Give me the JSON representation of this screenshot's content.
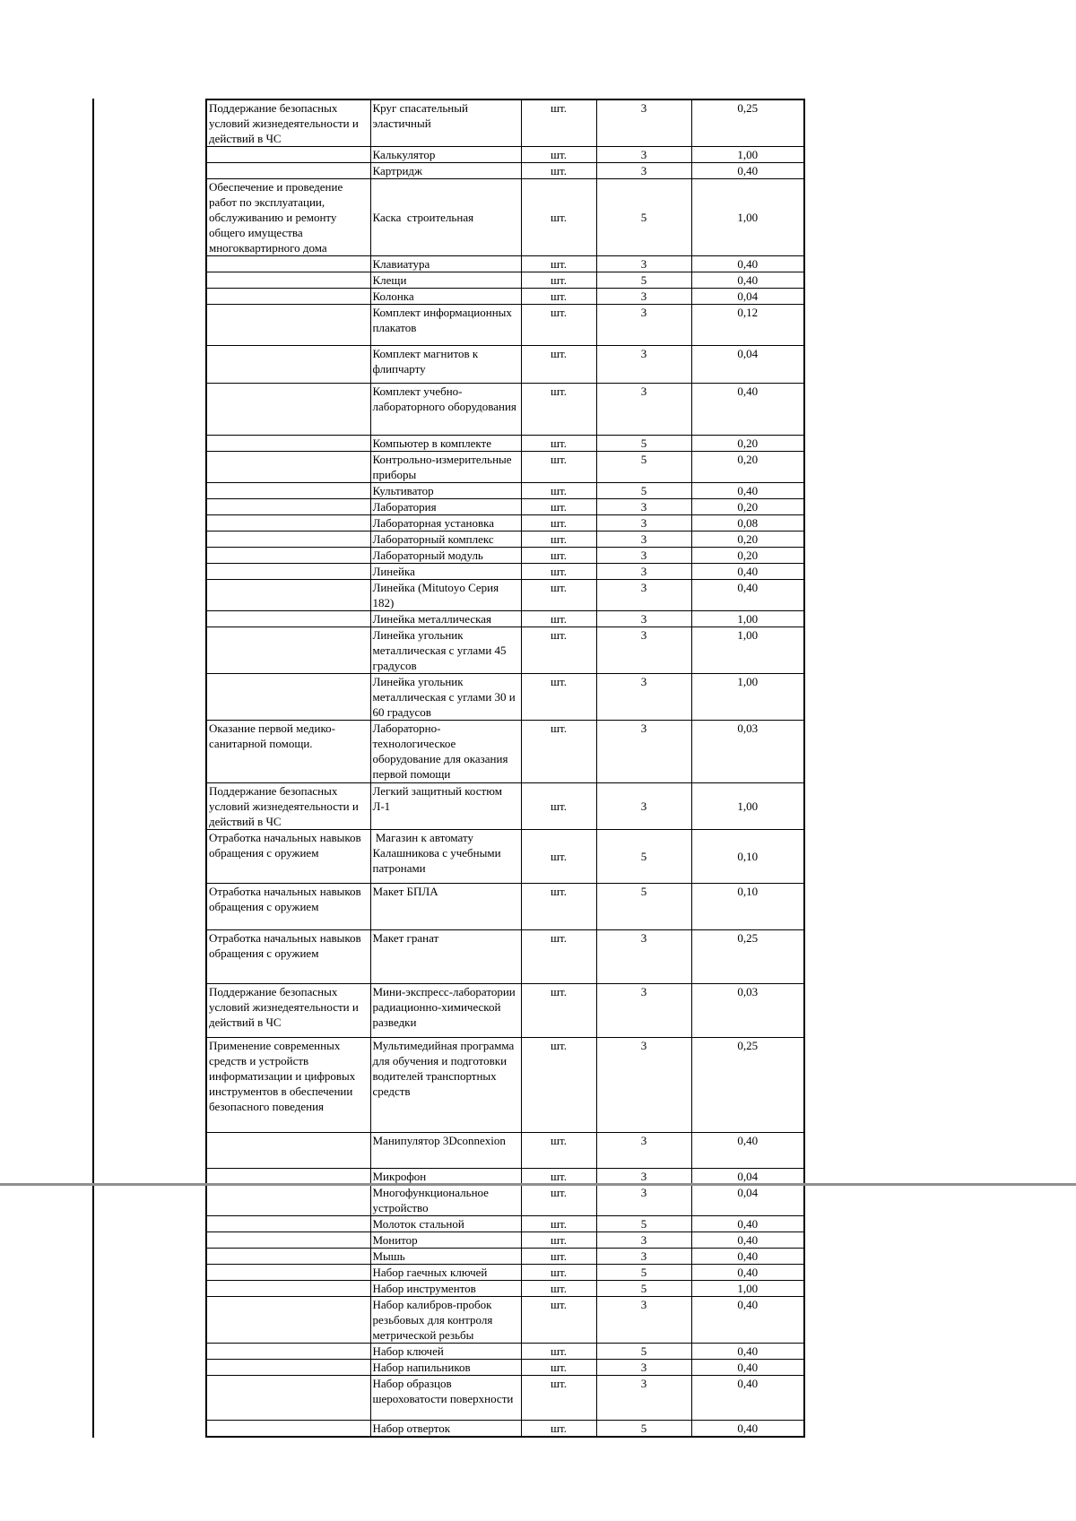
{
  "colors": {
    "background": "#ffffff",
    "table_border": "#000000",
    "page_join_line": "#8f8f8f"
  },
  "table": {
    "columns": [
      "activity",
      "item",
      "unit",
      "qty",
      "value"
    ],
    "rows": [
      {
        "activity": "Поддержание безопасных условий жизнедеятельности и действий в ЧС",
        "item": "Круг спасательный эластичный",
        "unit": "шт.",
        "qty": "3",
        "value": "0,25"
      },
      {
        "activity": "",
        "item": "Калькулятор",
        "unit": "шт.",
        "qty": "3",
        "value": "1,00"
      },
      {
        "activity": "",
        "item": "Картридж",
        "unit": "шт.",
        "qty": "3",
        "value": "0,40"
      },
      {
        "activity": "Обеспечение и проведение работ по эксплуатации, обслуживанию и ремонту общего имущества многоквартирного дома",
        "item": "Каска  строительная",
        "unit": "шт.",
        "qty": "5",
        "value": "1,00"
      },
      {
        "activity": "",
        "item": "Клавиатура",
        "unit": "шт.",
        "qty": "3",
        "value": "0,40"
      },
      {
        "activity": "",
        "item": "Клещи",
        "unit": "шт.",
        "qty": "5",
        "value": "0,40"
      },
      {
        "activity": "",
        "item": "Колонка",
        "unit": "шт.",
        "qty": "3",
        "value": "0,04"
      },
      {
        "activity": "",
        "item": "Комплект информационных плакатов",
        "unit": "шт.",
        "qty": "3",
        "value": "0,12"
      },
      {
        "activity": "",
        "item": "Комплект магнитов к флипчарту",
        "unit": "шт.",
        "qty": "3",
        "value": "0,04"
      },
      {
        "activity": "",
        "item": "Комплект учебно-лабораторного оборудования",
        "unit": "шт.",
        "qty": "3",
        "value": "0,40"
      },
      {
        "activity": "",
        "item": "Компьютер в комплекте",
        "unit": "шт.",
        "qty": "5",
        "value": "0,20"
      },
      {
        "activity": "",
        "item": "Контрольно-измерительные приборы",
        "unit": "шт.",
        "qty": "5",
        "value": "0,20"
      },
      {
        "activity": "",
        "item": "Культиватор",
        "unit": "шт.",
        "qty": "5",
        "value": "0,40"
      },
      {
        "activity": "",
        "item": "Лаборатория",
        "unit": "шт.",
        "qty": "3",
        "value": "0,20"
      },
      {
        "activity": "",
        "item": "Лабораторная установка",
        "unit": "шт.",
        "qty": "3",
        "value": "0,08"
      },
      {
        "activity": "",
        "item": "Лабораторный комплекс",
        "unit": "шт.",
        "qty": "3",
        "value": "0,20"
      },
      {
        "activity": "",
        "item": "Лабораторный модуль",
        "unit": "шт.",
        "qty": "3",
        "value": "0,20"
      },
      {
        "activity": "",
        "item": "Линейка",
        "unit": "шт.",
        "qty": "3",
        "value": "0,40"
      },
      {
        "activity": "",
        "item": "Линейка (Mitutoyo Серия 182)",
        "unit": "шт.",
        "qty": "3",
        "value": "0,40"
      },
      {
        "activity": "",
        "item": "Линейка металлическая",
        "unit": "шт.",
        "qty": "3",
        "value": "1,00"
      },
      {
        "activity": "",
        "item": "Линейка угольник металлическая с углами 45 градусов",
        "unit": "шт.",
        "qty": "3",
        "value": "1,00"
      },
      {
        "activity": "",
        "item": "Линейка угольник металлическая с углами 30 и 60 градусов",
        "unit": "шт.",
        "qty": "3",
        "value": "1,00"
      },
      {
        "activity": "Оказание первой медико-санитарной помощи.",
        "item": "Лабораторно-технологическое оборудование для оказания первой помощи",
        "unit": "шт.",
        "qty": "3",
        "value": "0,03"
      },
      {
        "activity": "Поддержание безопасных условий жизнедеятельности и действий в ЧС",
        "item": "Легкий защитный костюм Л-1",
        "unit": "шт.",
        "qty": "3",
        "value": "1,00"
      },
      {
        "activity": "Отработка начальных навыков обращения с оружием",
        "item": " Магазин к автомату Калашникова с учебными патронами",
        "unit": "шт.",
        "qty": "5",
        "value": "0,10"
      },
      {
        "activity": "Отработка начальных навыков обращения с оружием",
        "item": "Макет БПЛА",
        "unit": "шт.",
        "qty": "5",
        "value": "0,10"
      },
      {
        "activity": "Отработка начальных навыков обращения с оружием",
        "item": "Макет гранат",
        "unit": "шт.",
        "qty": "3",
        "value": "0,25"
      },
      {
        "activity": "Поддержание безопасных условий жизнедеятельности и действий в ЧС",
        "item": "Мини-экспресс-лаборатории радиационно-химической разведки",
        "unit": "шт.",
        "qty": "3",
        "value": "0,03"
      },
      {
        "activity": "Применение современных средств и устройств информатизации и цифровых инструментов в обеспечении безопасного поведения",
        "item": "Мультимедийная программа для обучения и подготовки водителей транспортных средств",
        "unit": "шт.",
        "qty": "3",
        "value": "0,25"
      },
      {
        "activity": "",
        "item": "Манипулятор 3Dconnexion",
        "unit": "шт.",
        "qty": "3",
        "value": "0,40"
      },
      {
        "activity": "",
        "item": "Микрофон",
        "unit": "шт.",
        "qty": "3",
        "value": "0,04"
      },
      {
        "activity": "",
        "item": "Многофункциональное устройство",
        "unit": "шт.",
        "qty": "3",
        "value": "0,04"
      },
      {
        "activity": "",
        "item": "Молоток стальной",
        "unit": "шт.",
        "qty": "5",
        "value": "0,40"
      },
      {
        "activity": "",
        "item": "Монитор",
        "unit": "шт.",
        "qty": "3",
        "value": "0,40"
      },
      {
        "activity": "",
        "item": "Мышь",
        "unit": "шт.",
        "qty": "3",
        "value": "0,40"
      },
      {
        "activity": "",
        "item": "Набор гаечных ключей",
        "unit": "шт.",
        "qty": "5",
        "value": "0,40"
      },
      {
        "activity": "",
        "item": "Набор инструментов",
        "unit": "шт.",
        "qty": "5",
        "value": "1,00"
      },
      {
        "activity": "",
        "item": "Набор калибров-пробок резьбовых для контроля метрической резьбы",
        "unit": "шт.",
        "qty": "3",
        "value": "0,40"
      },
      {
        "activity": "",
        "item": "Набор ключей",
        "unit": "шт.",
        "qty": "5",
        "value": "0,40"
      },
      {
        "activity": "",
        "item": "Набор напильников",
        "unit": "шт.",
        "qty": "3",
        "value": "0,40"
      },
      {
        "activity": "",
        "item": "Набор образцов шероховатости поверхности",
        "unit": "шт.",
        "qty": "3",
        "value": "0,40"
      },
      {
        "activity": "",
        "item": "Набор отверток",
        "unit": "шт.",
        "qty": "5",
        "value": "0,40"
      }
    ]
  }
}
